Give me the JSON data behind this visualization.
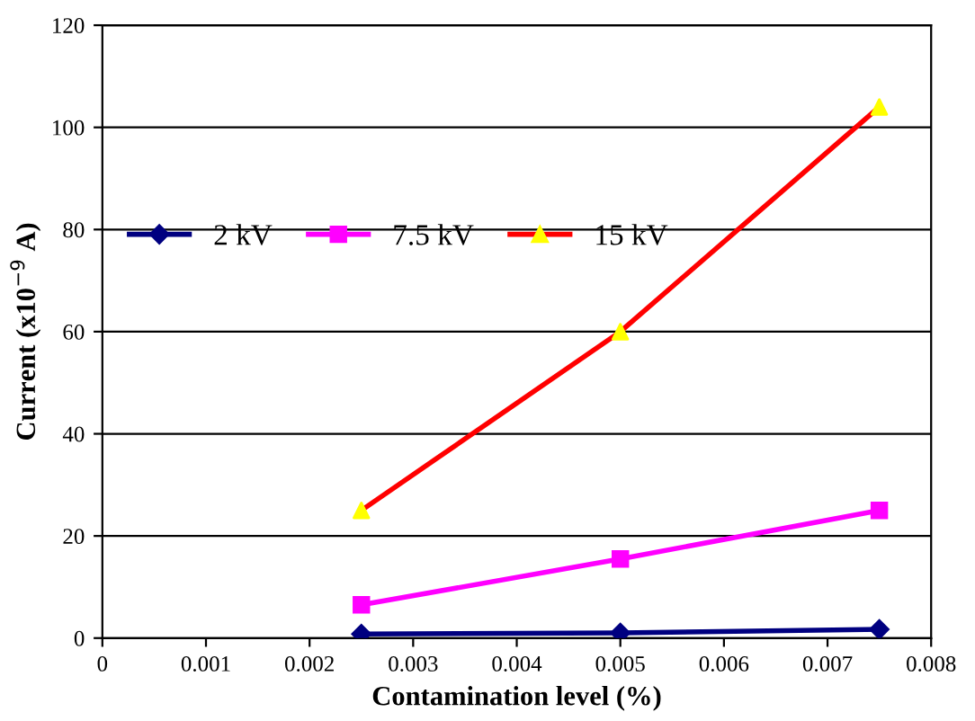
{
  "chart_data": {
    "type": "line",
    "xlabel": "Contamination level (%)",
    "ylabel": "Current (x10$^{−9}$ A)",
    "x": [
      0.0025,
      0.005,
      0.0075
    ],
    "series": [
      {
        "name": "2 kV",
        "color": "#000080",
        "marker": "diamond",
        "values": [
          0.8,
          1.0,
          1.7
        ]
      },
      {
        "name": "7.5 kV",
        "color": "#ff00ff",
        "marker": "square",
        "values": [
          6.5,
          15.5,
          25
        ]
      },
      {
        "name": "15 kV",
        "color": "#ff0000",
        "colors": [
          "#ffff00",
          "#ffff00",
          "#ffff00"
        ],
        "marker": "triangle",
        "values": [
          25,
          60,
          104
        ]
      }
    ],
    "xlim": [
      0,
      0.008
    ],
    "xticks": [
      0,
      0.001,
      0.002,
      0.003,
      0.004,
      0.005,
      0.006,
      0.007,
      0.008
    ],
    "ylim": [
      0,
      120
    ],
    "yticks": [
      0,
      20,
      40,
      60,
      80,
      100,
      120
    ],
    "grid": "y",
    "legend": "top left"
  }
}
